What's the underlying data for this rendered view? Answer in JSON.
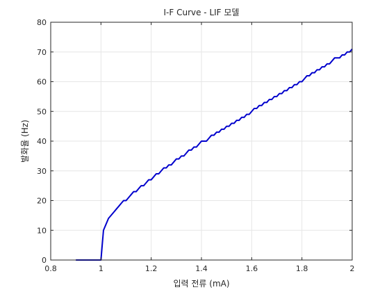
{
  "chart_data": {
    "type": "line",
    "title": "I-F Curve - LIF 모델",
    "xlabel": "입력 전류 (mA)",
    "ylabel": "발화율 (Hz)",
    "xlim": [
      0.8,
      2.0
    ],
    "ylim": [
      0,
      80
    ],
    "xticks": [
      "0.8",
      "1",
      "1.2",
      "1.4",
      "1.6",
      "1.8",
      "2"
    ],
    "yticks": [
      "0",
      "10",
      "20",
      "30",
      "40",
      "50",
      "60",
      "70",
      "80"
    ],
    "grid": true,
    "series": [
      {
        "color": "#0000cc",
        "x": [
          0.9,
          0.95,
          1.0,
          1.01,
          1.02,
          1.03,
          1.04,
          1.05,
          1.06,
          1.07,
          1.08,
          1.09,
          1.1,
          1.11,
          1.12,
          1.13,
          1.14,
          1.15,
          1.16,
          1.17,
          1.18,
          1.19,
          1.2,
          1.21,
          1.22,
          1.23,
          1.24,
          1.25,
          1.26,
          1.27,
          1.28,
          1.29,
          1.3,
          1.31,
          1.32,
          1.33,
          1.34,
          1.35,
          1.36,
          1.37,
          1.38,
          1.39,
          1.4,
          1.41,
          1.42,
          1.43,
          1.44,
          1.45,
          1.46,
          1.47,
          1.48,
          1.49,
          1.5,
          1.51,
          1.52,
          1.53,
          1.54,
          1.55,
          1.56,
          1.57,
          1.58,
          1.59,
          1.6,
          1.61,
          1.62,
          1.63,
          1.64,
          1.65,
          1.66,
          1.67,
          1.68,
          1.69,
          1.7,
          1.71,
          1.72,
          1.73,
          1.74,
          1.75,
          1.76,
          1.77,
          1.78,
          1.79,
          1.8,
          1.81,
          1.82,
          1.83,
          1.84,
          1.85,
          1.86,
          1.87,
          1.88,
          1.89,
          1.9,
          1.91,
          1.92,
          1.93,
          1.94,
          1.95,
          1.96,
          1.97,
          1.98,
          1.99,
          2.0
        ],
        "y": [
          0,
          0,
          0,
          10,
          12,
          14,
          15,
          16,
          17,
          18,
          19,
          20,
          20,
          21,
          22,
          23,
          23,
          24,
          25,
          25,
          26,
          27,
          27,
          28,
          29,
          29,
          30,
          31,
          31,
          32,
          32,
          33,
          34,
          34,
          35,
          35,
          36,
          37,
          37,
          38,
          38,
          39,
          40,
          40,
          40,
          41,
          42,
          42,
          43,
          43,
          44,
          44,
          45,
          45,
          46,
          46,
          47,
          47,
          48,
          48,
          49,
          49,
          50,
          51,
          51,
          52,
          52,
          53,
          53,
          54,
          54,
          55,
          55,
          56,
          56,
          57,
          57,
          58,
          58,
          59,
          59,
          60,
          60,
          61,
          62,
          62,
          63,
          63,
          64,
          64,
          65,
          65,
          66,
          66,
          67,
          68,
          68,
          68,
          69,
          69,
          70,
          70,
          71
        ]
      }
    ]
  }
}
